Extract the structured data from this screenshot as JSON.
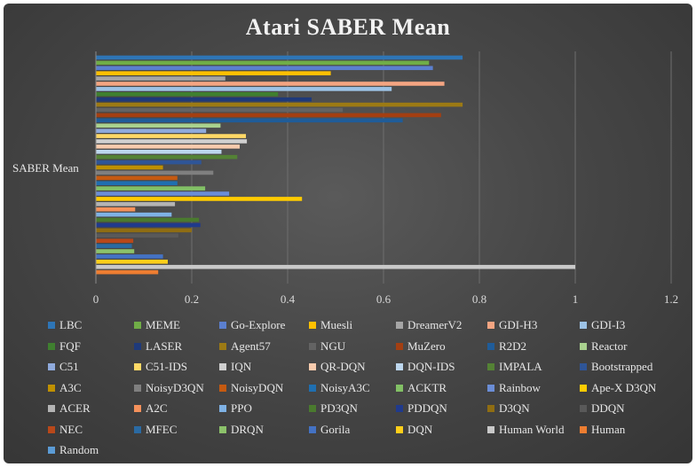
{
  "chart_data": {
    "type": "bar",
    "orientation": "horizontal",
    "title": "Atari SABER Mean",
    "categories": [
      "SABER Mean"
    ],
    "xlim": [
      0,
      1.2
    ],
    "xticks": [
      "0",
      "0.2",
      "0.4",
      "0.6",
      "0.8",
      "1",
      "1.2"
    ],
    "grid": true,
    "legend_position": "bottom",
    "series": [
      {
        "name": "LBC",
        "value": 0.765,
        "color": "#2e75b6"
      },
      {
        "name": "MEME",
        "value": 0.695,
        "color": "#70ad47"
      },
      {
        "name": "Go-Explore",
        "value": 0.703,
        "color": "#5b7fcf"
      },
      {
        "name": "Muesli",
        "value": 0.49,
        "color": "#ffc000"
      },
      {
        "name": "DreamerV2",
        "value": 0.27,
        "color": "#a5a5a5"
      },
      {
        "name": "GDI-H3",
        "value": 0.727,
        "color": "#f4a582"
      },
      {
        "name": "GDI-I3",
        "value": 0.617,
        "color": "#9dc3e6"
      },
      {
        "name": "FQF",
        "value": 0.38,
        "color": "#3f7f2f"
      },
      {
        "name": "LASER",
        "value": 0.45,
        "color": "#1f3a7a"
      },
      {
        "name": "Agent57",
        "value": 0.765,
        "color": "#9c7a14"
      },
      {
        "name": "NGU",
        "value": 0.515,
        "color": "#636363"
      },
      {
        "name": "MuZero",
        "value": 0.72,
        "color": "#a33f12"
      },
      {
        "name": "R2D2",
        "value": 0.64,
        "color": "#1f5c99"
      },
      {
        "name": "Reactor",
        "value": 0.26,
        "color": "#a9d18e"
      },
      {
        "name": "C51",
        "value": 0.23,
        "color": "#8faadc"
      },
      {
        "name": "C51-IDS",
        "value": 0.313,
        "color": "#ffd966"
      },
      {
        "name": "IQN",
        "value": 0.315,
        "color": "#d0d0d0"
      },
      {
        "name": "QR-DQN",
        "value": 0.3,
        "color": "#f8cbad"
      },
      {
        "name": "DQN-IDS",
        "value": 0.262,
        "color": "#bdd7ee"
      },
      {
        "name": "IMPALA",
        "value": 0.295,
        "color": "#548235"
      },
      {
        "name": "Bootstrapped",
        "value": 0.22,
        "color": "#2f5597"
      },
      {
        "name": "A3C",
        "value": 0.14,
        "color": "#bf9000"
      },
      {
        "name": "NoisyD3QN",
        "value": 0.245,
        "color": "#7f7f7f"
      },
      {
        "name": "NoisyDQN",
        "value": 0.17,
        "color": "#c55a11"
      },
      {
        "name": "NoisyA3C",
        "value": 0.17,
        "color": "#1f6fb0"
      },
      {
        "name": "ACKTR",
        "value": 0.228,
        "color": "#82c065"
      },
      {
        "name": "Rainbow",
        "value": 0.278,
        "color": "#6b8dd6"
      },
      {
        "name": "Ape-X D3QN",
        "value": 0.43,
        "color": "#ffcc00"
      },
      {
        "name": "ACER",
        "value": 0.165,
        "color": "#b4b4b4"
      },
      {
        "name": "A2C",
        "value": 0.082,
        "color": "#f4915b"
      },
      {
        "name": "PPO",
        "value": 0.158,
        "color": "#7fb2e5"
      },
      {
        "name": "PD3QN",
        "value": 0.215,
        "color": "#4a7a2e"
      },
      {
        "name": "PDDQN",
        "value": 0.218,
        "color": "#203a8c"
      },
      {
        "name": "D3QN",
        "value": 0.2,
        "color": "#8f6d12"
      },
      {
        "name": "DDQN",
        "value": 0.172,
        "color": "#595959"
      },
      {
        "name": "NEC",
        "value": 0.078,
        "color": "#b8481a"
      },
      {
        "name": "MFEC",
        "value": 0.075,
        "color": "#2a6aa3"
      },
      {
        "name": "DRQN",
        "value": 0.08,
        "color": "#8cc26a"
      },
      {
        "name": "Gorila",
        "value": 0.14,
        "color": "#4472c4"
      },
      {
        "name": "DQN",
        "value": 0.15,
        "color": "#ffcf1a"
      },
      {
        "name": "Human World",
        "value": 1.0,
        "color": "#c9c9c9"
      },
      {
        "name": "Human",
        "value": 0.13,
        "color": "#ed7d31"
      },
      {
        "name": "Random",
        "value": 0.0,
        "color": "#5b9bd5"
      }
    ]
  }
}
